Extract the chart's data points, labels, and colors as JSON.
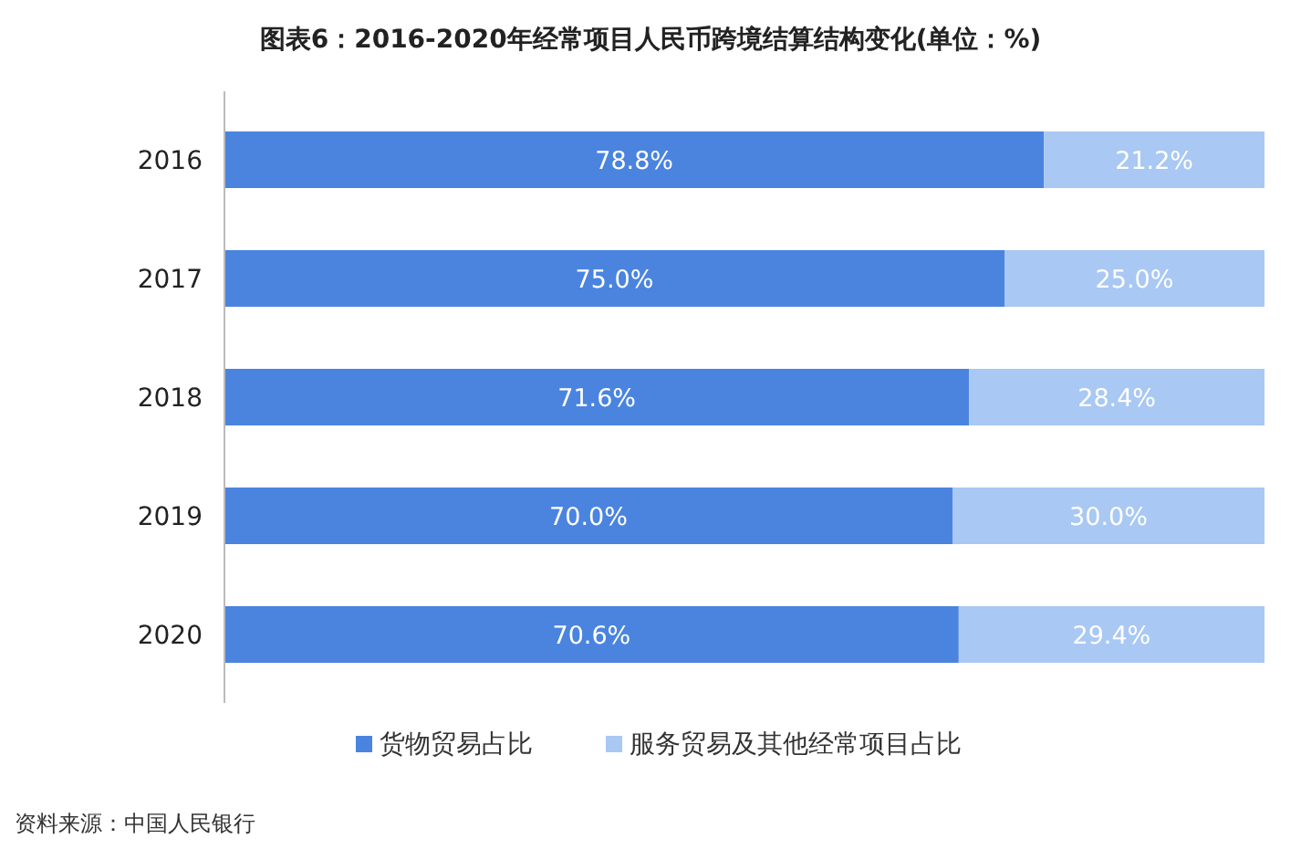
{
  "chart_data": {
    "type": "bar",
    "orientation": "horizontal",
    "stacked": true,
    "title": "图表6：2016-2020年经常项目人民币跨境结算结构变化(单位：%)",
    "categories": [
      "2016",
      "2017",
      "2018",
      "2019",
      "2020"
    ],
    "series": [
      {
        "name": "货物贸易占比",
        "color": "#4a84df",
        "values": [
          78.8,
          75.0,
          71.6,
          70.0,
          70.6
        ],
        "value_labels": [
          "78.8%",
          "75.0%",
          "71.6%",
          "70.0%",
          "70.6%"
        ]
      },
      {
        "name": "服务贸易及其他经常项目占比",
        "color": "#a9c8f3",
        "values": [
          21.2,
          25.0,
          28.4,
          30.0,
          29.4
        ],
        "value_labels": [
          "21.2%",
          "25.0%",
          "28.4%",
          "30.0%",
          "29.4%"
        ]
      }
    ],
    "tick_labels": "y",
    "legend": "bottom",
    "annotations": [
      "资料来源：中国人民银行"
    ]
  }
}
